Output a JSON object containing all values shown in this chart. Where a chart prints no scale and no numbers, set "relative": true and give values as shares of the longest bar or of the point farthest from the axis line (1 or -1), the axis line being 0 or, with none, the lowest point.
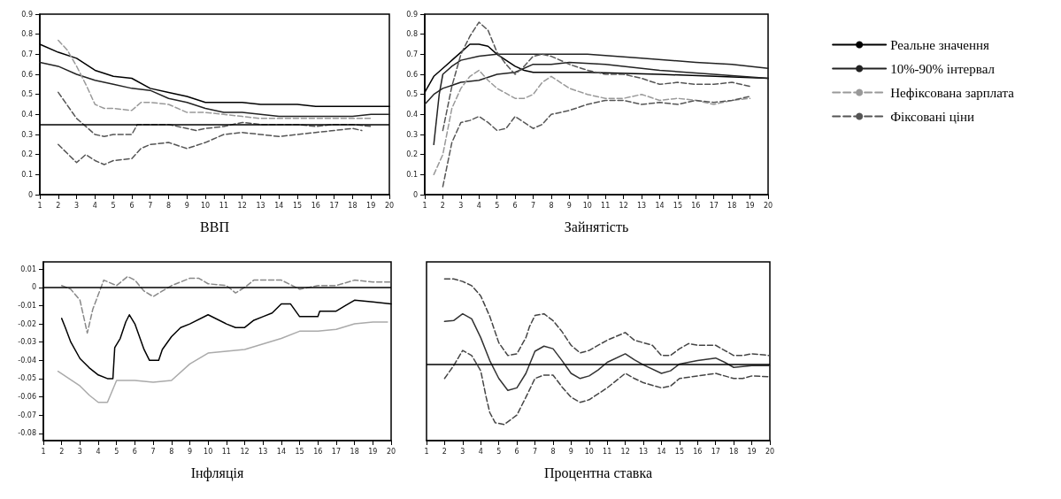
{
  "chart_data": [
    {
      "type": "line",
      "xlabel": "ВВП",
      "xlim": [
        1,
        20
      ],
      "xticks": [
        1,
        2,
        3,
        4,
        5,
        6,
        7,
        8,
        9,
        10,
        11,
        12,
        13,
        14,
        15,
        16,
        17,
        18,
        19,
        20
      ],
      "ylim": [
        0,
        0.9
      ],
      "yticks": [
        0,
        0.1,
        0.2,
        0.3,
        0.4,
        0.5,
        0.6,
        0.7,
        0.8,
        0.9
      ],
      "grid": false,
      "legend": false,
      "marker": "none",
      "ref_lines": [
        {
          "axis": "y",
          "value": 0.35,
          "color": "#000000",
          "line_style": "solid"
        }
      ],
      "series": [
        {
          "color": "#000000",
          "line_style": "solid",
          "x": [
            1,
            2,
            3,
            4,
            5,
            6,
            7,
            8,
            9,
            10,
            11,
            12,
            13,
            14,
            15,
            16,
            17,
            18,
            19,
            20
          ],
          "values": [
            0.75,
            0.71,
            0.68,
            0.62,
            0.59,
            0.58,
            0.53,
            0.51,
            0.49,
            0.46,
            0.46,
            0.46,
            0.45,
            0.45,
            0.45,
            0.44,
            0.44,
            0.44,
            0.44,
            0.44
          ]
        },
        {
          "color": "#222222",
          "line_style": "solid",
          "x": [
            1,
            2,
            3,
            4,
            5,
            6,
            7,
            8,
            9,
            10,
            11,
            12,
            13,
            14,
            15,
            16,
            17,
            18,
            19,
            20
          ],
          "values": [
            0.66,
            0.64,
            0.6,
            0.57,
            0.55,
            0.53,
            0.52,
            0.48,
            0.46,
            0.43,
            0.41,
            0.41,
            0.4,
            0.39,
            0.39,
            0.39,
            0.39,
            0.39,
            0.4,
            0.4
          ]
        },
        {
          "color": "#999999",
          "line_style": "dashed",
          "x": [
            2,
            2.5,
            3,
            3.5,
            4,
            4.5,
            5,
            6,
            6.5,
            7,
            8,
            9,
            10,
            11,
            12,
            13,
            14,
            15,
            16,
            17,
            18,
            19
          ],
          "values": [
            0.77,
            0.72,
            0.64,
            0.55,
            0.45,
            0.43,
            0.43,
            0.42,
            0.46,
            0.46,
            0.45,
            0.41,
            0.41,
            0.4,
            0.39,
            0.38,
            0.38,
            0.38,
            0.38,
            0.38,
            0.38,
            0.38
          ]
        },
        {
          "color": "#555555",
          "line_style": "dashed",
          "x": [
            2,
            3,
            3.5,
            4,
            4.5,
            5,
            6,
            6.3,
            7,
            8,
            9,
            9.5,
            10,
            11,
            12,
            13,
            14,
            15,
            16,
            17,
            18,
            19
          ],
          "values": [
            0.51,
            0.38,
            0.34,
            0.3,
            0.29,
            0.3,
            0.3,
            0.35,
            0.35,
            0.35,
            0.33,
            0.32,
            0.33,
            0.34,
            0.36,
            0.35,
            0.35,
            0.35,
            0.34,
            0.35,
            0.35,
            0.34
          ]
        },
        {
          "color": "#555555",
          "line_style": "dashed",
          "x": [
            2,
            3,
            3.5,
            4,
            4.5,
            5,
            6,
            6.5,
            7,
            8,
            9,
            10,
            11,
            12,
            13,
            14,
            15,
            16,
            17,
            18,
            18.5
          ],
          "values": [
            0.25,
            0.16,
            0.2,
            0.17,
            0.15,
            0.17,
            0.18,
            0.23,
            0.25,
            0.26,
            0.23,
            0.26,
            0.3,
            0.31,
            0.3,
            0.29,
            0.3,
            0.31,
            0.32,
            0.33,
            0.32
          ]
        }
      ]
    },
    {
      "type": "line",
      "xlabel": "Зайнятість",
      "xlim": [
        1,
        20
      ],
      "xticks": [
        1,
        2,
        3,
        4,
        5,
        6,
        7,
        8,
        9,
        10,
        11,
        12,
        13,
        14,
        15,
        16,
        17,
        18,
        19,
        20
      ],
      "ylim": [
        0,
        0.9
      ],
      "yticks": [
        0,
        0.1,
        0.2,
        0.3,
        0.4,
        0.5,
        0.6,
        0.7,
        0.8,
        0.9
      ],
      "grid": false,
      "legend": "right",
      "marker": "none",
      "series": [
        {
          "name": "Реальне значення",
          "color": "#000000",
          "line_style": "solid",
          "x": [
            1,
            1.5,
            2,
            2.5,
            3,
            3.5,
            4,
            4.5,
            5,
            5.5,
            6,
            6.5,
            7,
            8,
            10,
            14,
            20
          ],
          "values": [
            0.51,
            0.59,
            0.63,
            0.67,
            0.71,
            0.75,
            0.75,
            0.74,
            0.7,
            0.67,
            0.64,
            0.62,
            0.61,
            0.61,
            0.61,
            0.6,
            0.58
          ]
        },
        {
          "name": "10%-90% інтервал",
          "color": "#222222",
          "line_style": "solid",
          "x": [
            1.5,
            1.8,
            2,
            2.5,
            3,
            4,
            5,
            6,
            8,
            10,
            13,
            16,
            18,
            20
          ],
          "values": [
            0.25,
            0.5,
            0.6,
            0.64,
            0.67,
            0.69,
            0.7,
            0.7,
            0.7,
            0.7,
            0.68,
            0.66,
            0.65,
            0.63
          ]
        },
        {
          "color": "#222222",
          "line_style": "solid",
          "x": [
            1,
            1.3,
            1.5,
            2,
            3,
            4,
            5,
            6,
            7,
            8,
            9,
            11,
            14,
            17,
            20
          ],
          "values": [
            0.45,
            0.48,
            0.5,
            0.53,
            0.56,
            0.57,
            0.6,
            0.61,
            0.65,
            0.65,
            0.66,
            0.65,
            0.62,
            0.6,
            0.58
          ]
        },
        {
          "name": "Нефіксована зарплата",
          "color": "#999999",
          "line_style": "dashed",
          "x": [
            1.5,
            2,
            2.5,
            3,
            3.5,
            4,
            4.5,
            5,
            6,
            6.5,
            7,
            7.5,
            8,
            9,
            10,
            11,
            12,
            13,
            14,
            15,
            16,
            17,
            18,
            19
          ],
          "values": [
            0.1,
            0.2,
            0.43,
            0.53,
            0.59,
            0.62,
            0.57,
            0.53,
            0.48,
            0.48,
            0.5,
            0.56,
            0.59,
            0.53,
            0.5,
            0.48,
            0.48,
            0.5,
            0.47,
            0.48,
            0.47,
            0.45,
            0.47,
            0.48
          ]
        },
        {
          "name": "Фіксовані ціни",
          "color": "#555555",
          "line_style": "dashed",
          "x": [
            2,
            2.5,
            3,
            3.5,
            4,
            4.5,
            5,
            5.5,
            6,
            6.5,
            7,
            7.5,
            8,
            9,
            10,
            11,
            12,
            13,
            14,
            15,
            16,
            17,
            18,
            19
          ],
          "values": [
            0.32,
            0.54,
            0.7,
            0.79,
            0.86,
            0.82,
            0.71,
            0.65,
            0.6,
            0.64,
            0.69,
            0.7,
            0.69,
            0.65,
            0.62,
            0.6,
            0.6,
            0.58,
            0.55,
            0.56,
            0.55,
            0.55,
            0.56,
            0.54
          ]
        },
        {
          "color": "#555555",
          "line_style": "dashed",
          "x": [
            2,
            2.5,
            3,
            3.5,
            4,
            4.5,
            5,
            5.5,
            6,
            6.5,
            7,
            7.5,
            8,
            9,
            10,
            11,
            12,
            13,
            14,
            15,
            16,
            17,
            18,
            19
          ],
          "values": [
            0.04,
            0.26,
            0.36,
            0.37,
            0.39,
            0.36,
            0.32,
            0.33,
            0.39,
            0.36,
            0.33,
            0.35,
            0.4,
            0.42,
            0.45,
            0.47,
            0.47,
            0.45,
            0.46,
            0.45,
            0.47,
            0.46,
            0.47,
            0.49
          ]
        }
      ]
    },
    {
      "type": "line",
      "xlabel": "Інфляція",
      "xlim": [
        1,
        20
      ],
      "xticks": [
        1,
        2,
        3,
        4,
        5,
        6,
        7,
        8,
        9,
        10,
        11,
        12,
        13,
        14,
        15,
        16,
        17,
        18,
        19,
        20
      ],
      "ylim": [
        -0.084,
        0.014
      ],
      "yticks": [
        -0.08,
        -0.07,
        -0.06,
        -0.05,
        -0.04,
        -0.03,
        -0.02,
        -0.01,
        0,
        0.01
      ],
      "grid": false,
      "legend": false,
      "marker": "none",
      "ref_lines": [
        {
          "axis": "y",
          "value": 0,
          "color": "#000000",
          "line_style": "solid"
        }
      ],
      "series": [
        {
          "color": "#000000",
          "line_style": "solid",
          "x": [
            2,
            2.2,
            2.5,
            3,
            3.5,
            4,
            4.5,
            4.8,
            4.9,
            5.2,
            5.5,
            5.7,
            6,
            6.5,
            6.8,
            7.3,
            7.5,
            8,
            8.5,
            9,
            10,
            11,
            11.5,
            12,
            12.5,
            13,
            13.5,
            14,
            14.5,
            15,
            16,
            16.1,
            17,
            17.5,
            18,
            19,
            20
          ],
          "values": [
            -0.017,
            -0.022,
            -0.03,
            -0.039,
            -0.044,
            -0.048,
            -0.05,
            -0.05,
            -0.033,
            -0.028,
            -0.019,
            -0.015,
            -0.02,
            -0.034,
            -0.04,
            -0.04,
            -0.034,
            -0.027,
            -0.022,
            -0.02,
            -0.015,
            -0.02,
            -0.022,
            -0.022,
            -0.018,
            -0.016,
            -0.014,
            -0.009,
            -0.009,
            -0.016,
            -0.016,
            -0.013,
            -0.013,
            -0.01,
            -0.007,
            -0.008,
            -0.009
          ]
        },
        {
          "color": "#aaaaaa",
          "line_style": "solid",
          "x": [
            1.8,
            3,
            3.5,
            4,
            4.5,
            5,
            6,
            7,
            8,
            9,
            10,
            11,
            12,
            13,
            14,
            15,
            16,
            17,
            18,
            19,
            19.8
          ],
          "values": [
            -0.046,
            -0.054,
            -0.059,
            -0.063,
            -0.063,
            -0.051,
            -0.051,
            -0.052,
            -0.051,
            -0.042,
            -0.036,
            -0.035,
            -0.034,
            -0.031,
            -0.028,
            -0.024,
            -0.024,
            -0.023,
            -0.02,
            -0.019,
            -0.019
          ]
        },
        {
          "color": "#888888",
          "line_style": "dashed",
          "x": [
            2,
            2.5,
            3,
            3.4,
            3.7,
            4,
            4.3,
            5,
            5.6,
            6,
            6.5,
            7,
            7.5,
            8,
            9,
            9.5,
            10,
            11,
            11.5,
            12,
            12.5,
            13.5,
            14,
            15,
            16,
            17,
            18,
            19,
            20
          ],
          "values": [
            0.001,
            -0.001,
            -0.007,
            -0.025,
            -0.012,
            -0.004,
            0.004,
            0.001,
            0.006,
            0.004,
            -0.002,
            -0.005,
            -0.002,
            0.001,
            0.005,
            0.005,
            0.002,
            0.001,
            -0.003,
            0,
            0.004,
            0.004,
            0.004,
            -0.001,
            0.001,
            0.001,
            0.004,
            0.003,
            0.003
          ]
        }
      ]
    },
    {
      "type": "line",
      "xlabel": "Процентна ставка",
      "relative": true,
      "xlim": [
        1,
        20
      ],
      "xticks": [
        1,
        2,
        3,
        4,
        5,
        6,
        7,
        8,
        9,
        10,
        11,
        12,
        13,
        14,
        15,
        16,
        17,
        18,
        19,
        20
      ],
      "grid": false,
      "legend": false,
      "marker": "none",
      "ref_lines": [
        {
          "axis": "y",
          "value": 0,
          "color": "#000000",
          "line_style": "solid"
        }
      ],
      "series": [
        {
          "color": "#333333",
          "line_style": "solid",
          "x": [
            2,
            2.5,
            3,
            3.5,
            4,
            4.5,
            5,
            5.5,
            6,
            6.5,
            7,
            7.5,
            8,
            8.5,
            9,
            9.5,
            10,
            10.5,
            11,
            12,
            12.5,
            13,
            14,
            14.5,
            15,
            16,
            17,
            17.5,
            18,
            19,
            20
          ],
          "values": [
            0.5,
            0.51,
            0.59,
            0.53,
            0.31,
            0.04,
            -0.17,
            -0.31,
            -0.28,
            -0.11,
            0.15,
            0.21,
            0.18,
            0.04,
            -0.11,
            -0.17,
            -0.14,
            -0.07,
            0.02,
            0.12,
            0.05,
            -0.01,
            -0.11,
            -0.08,
            0,
            0.04,
            0.07,
            0.02,
            -0.04,
            -0.02,
            -0.02
          ]
        },
        {
          "color": "#444444",
          "line_style": "dashed",
          "x": [
            2,
            2.5,
            3,
            3.5,
            4,
            4.5,
            5,
            5.5,
            6,
            6.5,
            6.7,
            7,
            7.5,
            8,
            8.5,
            9,
            9.5,
            10,
            11,
            12,
            12.5,
            13,
            13.5,
            14,
            14.5,
            15,
            15.5,
            16,
            17,
            17.5,
            18,
            18.5,
            19,
            20
          ],
          "values": [
            1,
            1,
            0.97,
            0.92,
            0.8,
            0.56,
            0.25,
            0.1,
            0.12,
            0.31,
            0.44,
            0.57,
            0.59,
            0.51,
            0.38,
            0.22,
            0.13,
            0.16,
            0.28,
            0.37,
            0.28,
            0.25,
            0.22,
            0.1,
            0.1,
            0.18,
            0.24,
            0.22,
            0.22,
            0.16,
            0.1,
            0.1,
            0.12,
            0.1
          ]
        },
        {
          "color": "#444444",
          "line_style": "dashed",
          "x": [
            2,
            2.5,
            3,
            3.5,
            4,
            4.3,
            4.5,
            4.8,
            5.3,
            6,
            6.5,
            7,
            7.5,
            8,
            8.5,
            9,
            9.5,
            10,
            11,
            12,
            12.5,
            13,
            14,
            14.5,
            15,
            16,
            17,
            17.5,
            18,
            18.5,
            19,
            20
          ],
          "values": [
            -0.17,
            -0.02,
            0.16,
            0.1,
            -0.08,
            -0.39,
            -0.57,
            -0.69,
            -0.71,
            -0.6,
            -0.39,
            -0.17,
            -0.13,
            -0.13,
            -0.27,
            -0.39,
            -0.45,
            -0.42,
            -0.28,
            -0.11,
            -0.17,
            -0.22,
            -0.28,
            -0.26,
            -0.17,
            -0.14,
            -0.11,
            -0.14,
            -0.17,
            -0.17,
            -0.14,
            -0.15
          ]
        }
      ]
    }
  ]
}
